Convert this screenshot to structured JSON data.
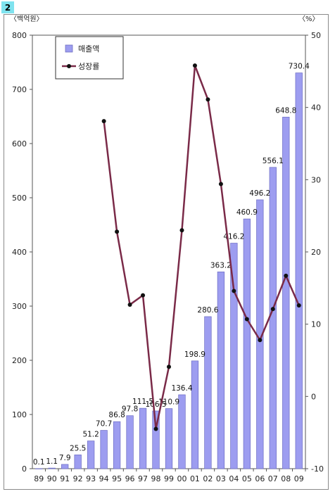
{
  "badge": "2",
  "chart_data": {
    "type": "bar",
    "left_unit": "〈백억원〉",
    "right_unit": "〈%〉",
    "categories": [
      "89",
      "90",
      "91",
      "92",
      "93",
      "94",
      "95",
      "96",
      "97",
      "98",
      "99",
      "00",
      "01",
      "02",
      "03",
      "04",
      "05",
      "06",
      "07",
      "08",
      "09"
    ],
    "series": [
      {
        "name": "매출액",
        "type": "bar",
        "axis": "left",
        "color": "#9d9df0",
        "values": [
          0.1,
          1.1,
          7.9,
          25.5,
          51.2,
          70.7,
          86.8,
          97.8,
          111.5,
          106.5,
          110.9,
          136.4,
          198.9,
          280.6,
          363.2,
          416.2,
          460.9,
          496.2,
          556.1,
          648.8,
          730.4
        ],
        "labels": [
          "0.1",
          "1.1",
          "7.9",
          "25.5",
          "51.2",
          "70.7",
          "86.8",
          "97.8",
          "111.5",
          "106.5",
          "110.9",
          "136.4",
          "198.9",
          "280.6",
          "363.2",
          "416.2",
          "460.9",
          "496.2",
          "556.1",
          "648.8",
          "730.4"
        ]
      },
      {
        "name": "성장률",
        "type": "line",
        "axis": "right",
        "color": "#7a2a48",
        "marker_color": "#111111",
        "values": [
          null,
          null,
          null,
          null,
          null,
          38.1,
          22.8,
          12.7,
          14.0,
          -4.5,
          4.1,
          23.0,
          45.8,
          41.1,
          29.4,
          14.6,
          10.7,
          7.8,
          12.1,
          16.7,
          12.6
        ]
      }
    ],
    "left_axis": {
      "ylim": [
        0,
        800
      ],
      "ticks": [
        "0",
        "100",
        "200",
        "300",
        "400",
        "500",
        "600",
        "700",
        "800"
      ]
    },
    "right_axis": {
      "ylim": [
        -10,
        50
      ],
      "ticks": [
        "-10",
        "0",
        "10",
        "20",
        "30",
        "40",
        "50"
      ]
    },
    "legend": {
      "position": "top-left",
      "items": [
        "매출액",
        "성장률"
      ]
    },
    "grid": false
  }
}
